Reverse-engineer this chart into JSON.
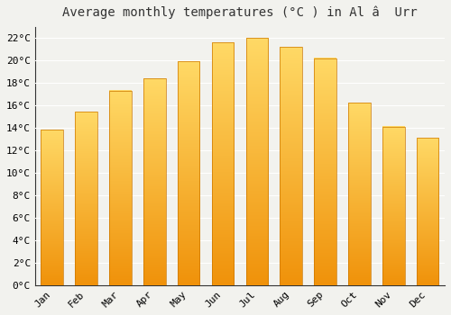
{
  "title": "Average monthly temperatures (°C ) in Al â  Urr",
  "months": [
    "Jan",
    "Feb",
    "Mar",
    "Apr",
    "May",
    "Jun",
    "Jul",
    "Aug",
    "Sep",
    "Oct",
    "Nov",
    "Dec"
  ],
  "temperatures": [
    13.8,
    15.4,
    17.3,
    18.4,
    19.9,
    21.6,
    22.0,
    21.2,
    20.2,
    16.2,
    14.1,
    13.1
  ],
  "bar_color_bottom": "#F0920A",
  "bar_color_top": "#FFD966",
  "bar_edge_color": "#CC7700",
  "background_color": "#F2F2EE",
  "grid_color": "#FFFFFF",
  "ylim": [
    0,
    23
  ],
  "yticks": [
    0,
    2,
    4,
    6,
    8,
    10,
    12,
    14,
    16,
    18,
    20,
    22
  ],
  "ytick_labels": [
    "0°C",
    "2°C",
    "4°C",
    "6°C",
    "8°C",
    "10°C",
    "12°C",
    "14°C",
    "16°C",
    "18°C",
    "20°C",
    "22°C"
  ],
  "title_fontsize": 10,
  "tick_fontsize": 8,
  "font_family": "monospace",
  "bar_width": 0.65
}
